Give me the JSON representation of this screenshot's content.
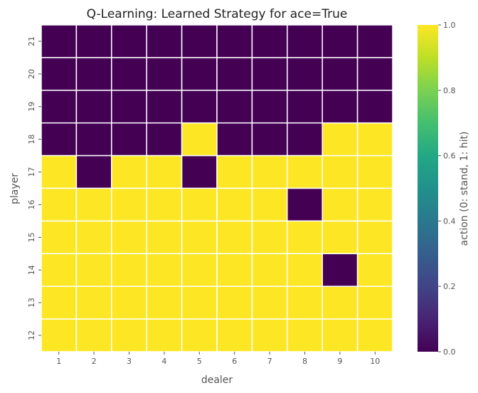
{
  "chart_data": {
    "type": "heatmap",
    "title": "Q-Learning: Learned Strategy for ace=True",
    "xlabel": "dealer",
    "ylabel": "player",
    "x_categories": [
      "1",
      "2",
      "3",
      "4",
      "5",
      "6",
      "7",
      "8",
      "9",
      "10"
    ],
    "y_categories": [
      "21",
      "20",
      "19",
      "18",
      "17",
      "16",
      "15",
      "14",
      "13",
      "12"
    ],
    "values": [
      [
        0,
        0,
        0,
        0,
        0,
        0,
        0,
        0,
        0,
        0
      ],
      [
        0,
        0,
        0,
        0,
        0,
        0,
        0,
        0,
        0,
        0
      ],
      [
        0,
        0,
        0,
        0,
        0,
        0,
        0,
        0,
        0,
        0
      ],
      [
        0,
        0,
        0,
        0,
        1,
        0,
        0,
        0,
        1,
        1
      ],
      [
        1,
        0,
        1,
        1,
        0,
        1,
        1,
        1,
        1,
        1
      ],
      [
        1,
        1,
        1,
        1,
        1,
        1,
        1,
        0,
        1,
        1
      ],
      [
        1,
        1,
        1,
        1,
        1,
        1,
        1,
        1,
        1,
        1
      ],
      [
        1,
        1,
        1,
        1,
        1,
        1,
        1,
        1,
        0,
        1
      ],
      [
        1,
        1,
        1,
        1,
        1,
        1,
        1,
        1,
        1,
        1
      ],
      [
        1,
        1,
        1,
        1,
        1,
        1,
        1,
        1,
        1,
        1
      ]
    ],
    "colorbar": {
      "label": "action (0: stand, 1: hit)",
      "range": [
        0,
        1
      ],
      "ticks": [
        "0.0",
        "0.2",
        "0.4",
        "0.6",
        "0.8",
        "1.0"
      ],
      "colormap": "viridis"
    },
    "colors": {
      "low": "#440154",
      "high": "#fde725",
      "cell_border": "#ffffff"
    }
  }
}
